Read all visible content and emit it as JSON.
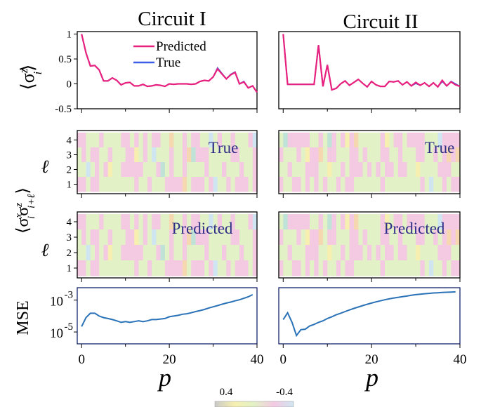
{
  "panel_titles": [
    "Circuit I",
    "Circuit II"
  ],
  "legend": {
    "predicted": "Predicted",
    "true": "True",
    "predicted_color": "#e8207e",
    "true_color": "#3a5ce8"
  },
  "labels": {
    "sz": "⟨σ",
    "sz_sup": "z",
    "sz_sub": "i",
    "sz_close": "⟩",
    "corr": "⟨σ",
    "corr_sup1": "x",
    "corr_sub1": "i",
    "corr_mid": "σ",
    "corr_sup2": "z",
    "corr_sub2": "i+ℓ",
    "corr_close": "⟩",
    "ell": "ℓ",
    "mse": "MSE",
    "xlabel": "p",
    "heat_true": "True",
    "heat_pred": "Predicted"
  },
  "colorbar": {
    "left": "0.4",
    "right": "-0.4"
  },
  "ticks": {
    "sz_y": [
      "1",
      "0.5",
      "0",
      "-0.5"
    ],
    "ell_y": [
      "4",
      "3",
      "2",
      "1"
    ],
    "mse_y": [
      "10",
      "10"
    ],
    "mse_y_exp": [
      "-3",
      "-5"
    ],
    "x": [
      "0",
      "20",
      "40"
    ]
  },
  "chart_data": [
    {
      "type": "line",
      "title": "Circuit I",
      "ylabel": "⟨σ_i^z⟩",
      "ylim": [
        -0.5,
        1.05
      ],
      "xlim": [
        -1,
        40
      ],
      "series": [
        {
          "name": "Predicted",
          "x": [
            0,
            1,
            2,
            3,
            4,
            5,
            6,
            7,
            8,
            9,
            10,
            11,
            12,
            13,
            14,
            15,
            16,
            17,
            18,
            19,
            20,
            21,
            22,
            23,
            24,
            25,
            26,
            27,
            28,
            29,
            30,
            31,
            32,
            33,
            34,
            35,
            36,
            37,
            38,
            39,
            40
          ],
          "values": [
            1.0,
            0.62,
            0.36,
            0.37,
            0.28,
            0.06,
            0.06,
            0.12,
            0.07,
            -0.02,
            0.02,
            0.03,
            -0.04,
            -0.04,
            -0.01,
            -0.05,
            -0.04,
            -0.02,
            -0.03,
            -0.05,
            0.0,
            -0.01,
            0.0,
            0.0,
            0.0,
            -0.01,
            0.0,
            0.05,
            0.07,
            0.06,
            0.14,
            0.3,
            0.2,
            0.1,
            0.18,
            0.23,
            0.0,
            0.04,
            -0.08,
            -0.04,
            -0.17
          ]
        },
        {
          "name": "True",
          "x": [
            0,
            1,
            2,
            3,
            4,
            5,
            6,
            7,
            8,
            9,
            10,
            11,
            12,
            13,
            14,
            15,
            16,
            17,
            18,
            19,
            20,
            21,
            22,
            23,
            24,
            25,
            26,
            27,
            28,
            29,
            30,
            31,
            32,
            33,
            34,
            35,
            36,
            37,
            38,
            39,
            40
          ],
          "values": [
            1.0,
            0.62,
            0.36,
            0.37,
            0.28,
            0.06,
            0.06,
            0.12,
            0.07,
            -0.02,
            0.02,
            0.03,
            -0.04,
            -0.04,
            -0.01,
            -0.05,
            -0.04,
            -0.02,
            -0.03,
            -0.05,
            0.0,
            -0.01,
            0.0,
            0.0,
            0.0,
            -0.01,
            0.0,
            0.05,
            0.07,
            0.06,
            0.14,
            0.32,
            0.21,
            0.1,
            0.19,
            0.24,
            0.0,
            0.05,
            -0.08,
            -0.04,
            -0.17
          ]
        }
      ]
    },
    {
      "type": "line",
      "title": "Circuit II",
      "ylim": [
        -0.5,
        1.05
      ],
      "xlim": [
        -1,
        40
      ],
      "series": [
        {
          "name": "Predicted",
          "x": [
            0,
            1,
            2,
            3,
            4,
            5,
            6,
            7,
            8,
            9,
            10,
            11,
            12,
            13,
            14,
            15,
            16,
            17,
            18,
            19,
            20,
            21,
            22,
            23,
            24,
            25,
            26,
            27,
            28,
            29,
            30,
            31,
            32,
            33,
            34,
            35,
            36,
            37,
            38,
            39,
            40
          ],
          "values": [
            1.0,
            -0.01,
            -0.01,
            -0.01,
            -0.01,
            -0.01,
            -0.01,
            -0.01,
            0.78,
            -0.05,
            0.38,
            -0.12,
            -0.09,
            0.0,
            0.06,
            -0.03,
            0.03,
            0.09,
            0.01,
            -0.06,
            0.05,
            -0.02,
            -0.05,
            -0.05,
            0.05,
            0.04,
            0.06,
            -0.02,
            0.04,
            -0.04,
            0.03,
            -0.03,
            0.02,
            -0.05,
            0.02,
            -0.06,
            0.07,
            -0.04,
            0.04,
            -0.02,
            -0.05
          ]
        },
        {
          "name": "True",
          "x": [
            0,
            1,
            2,
            3,
            4,
            5,
            6,
            7,
            8,
            9,
            10,
            11,
            12,
            13,
            14,
            15,
            16,
            17,
            18,
            19,
            20,
            21,
            22,
            23,
            24,
            25,
            26,
            27,
            28,
            29,
            30,
            31,
            32,
            33,
            34,
            35,
            36,
            37,
            38,
            39,
            40
          ],
          "values": [
            1.0,
            -0.01,
            -0.01,
            -0.01,
            -0.01,
            -0.01,
            -0.01,
            -0.01,
            0.78,
            -0.05,
            0.38,
            -0.12,
            -0.09,
            0.0,
            0.06,
            -0.03,
            0.03,
            0.09,
            0.01,
            -0.06,
            0.05,
            -0.02,
            -0.05,
            -0.05,
            0.05,
            0.04,
            0.06,
            -0.02,
            0.04,
            -0.04,
            0.01,
            -0.03,
            0.02,
            -0.05,
            0.02,
            -0.06,
            0.05,
            -0.04,
            0.05,
            0.0,
            -0.05
          ]
        }
      ]
    },
    {
      "type": "heatmap",
      "panel": "Circuit I True",
      "ylabel": "ℓ",
      "rows": [
        1,
        2,
        3,
        4
      ],
      "xlim": [
        -1,
        40
      ],
      "zlim": [
        0.4,
        -0.4
      ]
    },
    {
      "type": "heatmap",
      "panel": "Circuit II True",
      "rows": [
        1,
        2,
        3,
        4
      ],
      "xlim": [
        -1,
        40
      ],
      "zlim": [
        0.4,
        -0.4
      ]
    },
    {
      "type": "heatmap",
      "panel": "Circuit I Predicted",
      "ylabel": "ℓ",
      "rows": [
        1,
        2,
        3,
        4
      ],
      "xlim": [
        -1,
        40
      ],
      "zlim": [
        0.4,
        -0.4
      ]
    },
    {
      "type": "heatmap",
      "panel": "Circuit II Predicted",
      "rows": [
        1,
        2,
        3,
        4
      ],
      "xlim": [
        -1,
        40
      ],
      "zlim": [
        0.4,
        -0.4
      ]
    },
    {
      "type": "line",
      "panel": "Circuit I",
      "ylabel": "MSE",
      "xlabel": "p",
      "yscale": "log",
      "ylim": [
        1.8e-06,
        0.006
      ],
      "xlim": [
        -1,
        40
      ],
      "series": [
        {
          "x": [
            0,
            1,
            2,
            3,
            4,
            5,
            6,
            7,
            8,
            9,
            10,
            11,
            12,
            13,
            14,
            15,
            16,
            17,
            18,
            19,
            20,
            21,
            22,
            23,
            24,
            25,
            26,
            27,
            28,
            29,
            30,
            31,
            32,
            33,
            34,
            35,
            36,
            37,
            38,
            39
          ],
          "values": [
            2.2e-05,
            8e-05,
            0.00015,
            0.00015,
            0.0001,
            8e-05,
            7e-05,
            6e-05,
            5e-05,
            4e-05,
            4.5e-05,
            4e-05,
            4.5e-05,
            5e-05,
            4.5e-05,
            5e-05,
            6e-05,
            6e-05,
            6.5e-05,
            7e-05,
            9e-05,
            0.0001,
            0.00011,
            0.00013,
            0.00014,
            0.00016,
            0.00019,
            0.00022,
            0.00026,
            0.00032,
            0.00038,
            0.00045,
            0.00055,
            0.00065,
            0.00075,
            0.0009,
            0.00105,
            0.0013,
            0.0016,
            0.0022
          ]
        }
      ]
    },
    {
      "type": "line",
      "panel": "Circuit II",
      "xlabel": "p",
      "yscale": "log",
      "ylim": [
        1.8e-06,
        0.006
      ],
      "xlim": [
        -1,
        40
      ],
      "series": [
        {
          "x": [
            0,
            1,
            2,
            3,
            4,
            5,
            6,
            7,
            8,
            9,
            10,
            11,
            12,
            13,
            14,
            15,
            16,
            17,
            18,
            19,
            20,
            21,
            22,
            23,
            24,
            25,
            26,
            27,
            28,
            29,
            30,
            31,
            32,
            33,
            34,
            35,
            36,
            37,
            38,
            39
          ],
          "values": [
            6e-05,
            0.00016,
            4e-05,
            6e-06,
            1.4e-05,
            1.5e-05,
            2.4e-05,
            3e-05,
            4e-05,
            5e-05,
            7e-05,
            9e-05,
            0.00012,
            0.00015,
            0.00019,
            0.00024,
            0.0003,
            0.00037,
            0.00045,
            0.00055,
            0.00065,
            0.00077,
            0.0009,
            0.00105,
            0.0012,
            0.00135,
            0.0015,
            0.00165,
            0.0018,
            0.002,
            0.0022,
            0.00235,
            0.0025,
            0.00265,
            0.0028,
            0.0029,
            0.003,
            0.0031,
            0.0032,
            0.0033
          ]
        }
      ]
    }
  ]
}
